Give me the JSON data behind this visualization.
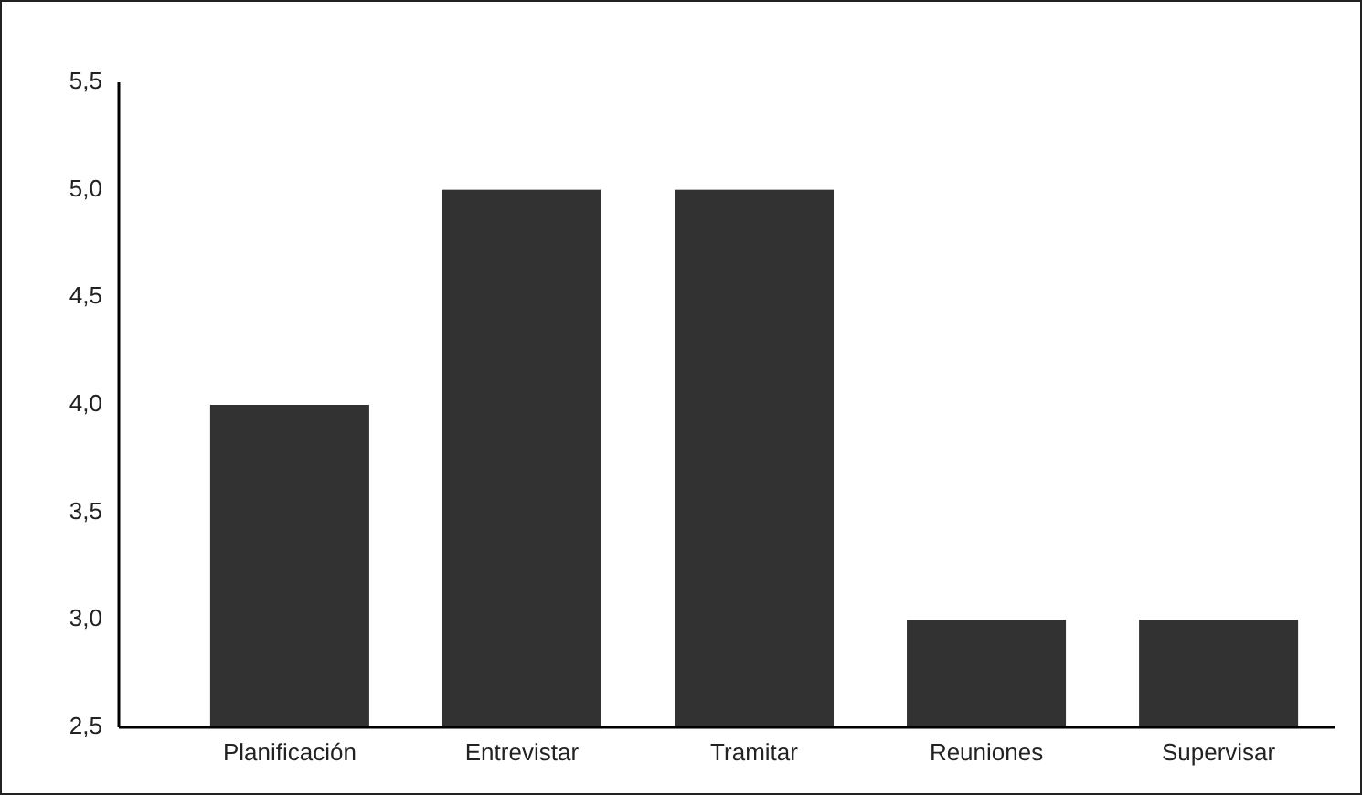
{
  "chart_data": {
    "type": "bar",
    "categories": [
      "Planificación",
      "Entrevistar",
      "Tramitar",
      "Reuniones",
      "Supervisar"
    ],
    "values": [
      4,
      5,
      5,
      3,
      3
    ],
    "color": "#323232",
    "ylim": [
      2.5,
      5.5
    ],
    "yticks": [
      {
        "value": 2.5,
        "label": "2,5"
      },
      {
        "value": 3,
        "label": "3,0"
      },
      {
        "value": 3.5,
        "label": "3,5"
      },
      {
        "value": 4,
        "label": "4,0"
      },
      {
        "value": 4.5,
        "label": "4,5"
      },
      {
        "value": 5,
        "label": "5,0"
      },
      {
        "value": 5.5,
        "label": "5,5"
      }
    ],
    "grid": false
  }
}
